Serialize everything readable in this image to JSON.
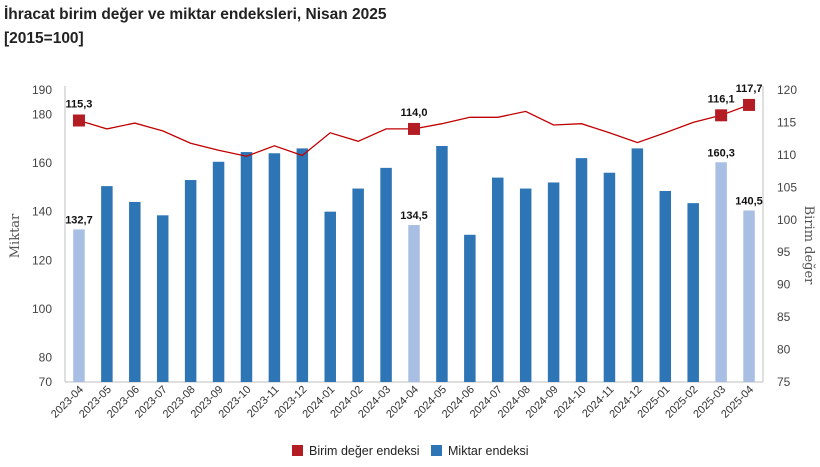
{
  "title": {
    "line1": "İhracat birim değer ve miktar endeksleri, Nisan 2025",
    "line2": "[2015=100]"
  },
  "chart_data": {
    "type": "bar+line",
    "categories": [
      "2023-04",
      "2023-05",
      "2023-06",
      "2023-07",
      "2023-08",
      "2023-09",
      "2023-10",
      "2023-11",
      "2023-12",
      "2024-01",
      "2024-02",
      "2024-03",
      "2024-04",
      "2024-05",
      "2024-06",
      "2024-07",
      "2024-08",
      "2024-09",
      "2024-10",
      "2024-11",
      "2024-12",
      "2025-01",
      "2025-02",
      "2025-03",
      "2025-04"
    ],
    "bars": {
      "name": "Miktar endeksi",
      "axis": "left",
      "values": [
        132.7,
        150.5,
        144,
        138.5,
        153,
        160.5,
        164.5,
        164,
        166,
        140,
        149.5,
        158,
        134.5,
        167,
        130.5,
        154,
        149.5,
        152,
        162,
        156,
        166,
        148.5,
        143.5,
        160.3,
        140.5
      ],
      "highlight_indices": [
        0,
        12,
        23,
        24
      ],
      "color": "#2e75b6",
      "highlight_color": "#a8bfe3"
    },
    "line": {
      "name": "Birim değer endeksi",
      "axis": "right",
      "values": [
        115.3,
        114,
        114.9,
        113.7,
        111.8,
        110.7,
        109.8,
        111.4,
        109.9,
        113.4,
        112.1,
        114,
        114,
        114.8,
        115.8,
        115.8,
        116.7,
        114.6,
        114.8,
        113.4,
        111.9,
        113.4,
        115,
        116.1,
        117.7
      ],
      "marker_indices": [
        0,
        12,
        23,
        24
      ],
      "color": "#c00000",
      "marker_color": "#b21c22"
    },
    "bar_labels": [
      {
        "index": 0,
        "text": "132,7"
      },
      {
        "index": 12,
        "text": "134,5"
      },
      {
        "index": 23,
        "text": "160,3"
      },
      {
        "index": 24,
        "text": "140,5"
      }
    ],
    "line_labels": [
      {
        "index": 0,
        "text": "115,3"
      },
      {
        "index": 12,
        "text": "114,0"
      },
      {
        "index": 23,
        "text": "116,1"
      },
      {
        "index": 24,
        "text": "117,7"
      }
    ],
    "left_axis": {
      "label": "Miktar",
      "ylim": [
        70,
        190
      ],
      "ticks": [
        "190",
        "180",
        "160",
        "140",
        "120",
        "100",
        "80",
        "70"
      ]
    },
    "right_axis": {
      "label": "Birim değer",
      "ylim": [
        75,
        120
      ],
      "ticks": [
        "120",
        "115",
        "110",
        "105",
        "100",
        "95",
        "90",
        "85",
        "80",
        "75"
      ]
    },
    "legend": {
      "placement": "bottom",
      "items": [
        {
          "label": "Birim değer endeksi",
          "color": "#b21c22"
        },
        {
          "label": "Miktar endeksi",
          "color": "#2e75b6"
        }
      ]
    }
  }
}
